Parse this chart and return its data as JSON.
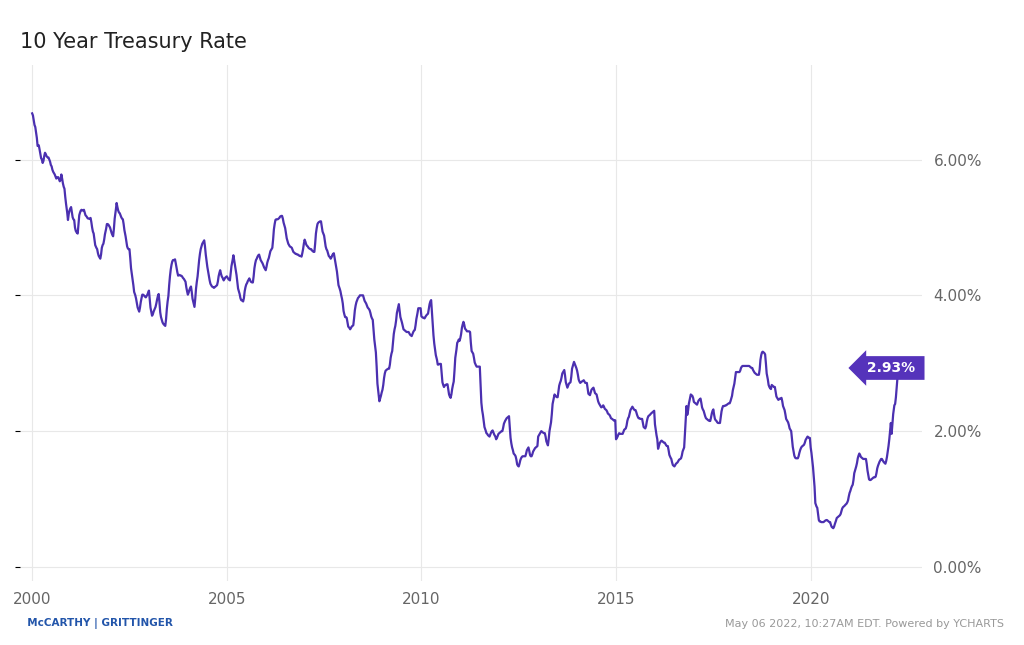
{
  "title": "10 Year Treasury Rate",
  "line_color": "#4B30B0",
  "background_color": "#ffffff",
  "grid_color": "#e8e8e8",
  "label_box_color": "#5533BB",
  "label_text_color": "#ffffff",
  "last_value": "2.93%",
  "yticks": [
    0.0,
    0.02,
    0.04,
    0.06
  ],
  "ytick_labels": [
    "0.00%",
    "2.00%",
    "4.00%",
    "6.00%"
  ],
  "xtick_vals": [
    2000,
    2005,
    2010,
    2015,
    2020
  ],
  "xlim_start": 1999.7,
  "xlim_end": 2022.85,
  "ylim_min": -0.002,
  "ylim_max": 0.074,
  "footer_right": "May 06 2022, 10:27AM EDT. Powered by YCHARTS",
  "title_fontsize": 15,
  "tick_fontsize": 11,
  "line_width": 1.6
}
